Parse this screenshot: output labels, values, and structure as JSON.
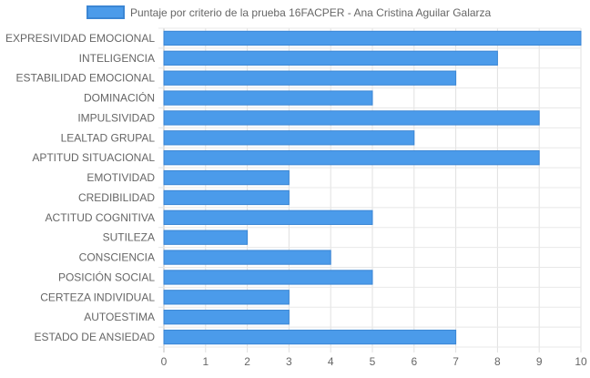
{
  "chart_data": {
    "type": "bar",
    "orientation": "horizontal",
    "categories": [
      "EXPRESIVIDAD EMOCIONAL",
      "INTELIGENCIA",
      "ESTABILIDAD EMOCIONAL",
      "DOMINACIÓN",
      "IMPULSIVIDAD",
      "LEALTAD GRUPAL",
      "APTITUD SITUACIONAL",
      "EMOTIVIDAD",
      "CREDIBILIDAD",
      "ACTITUD COGNITIVA",
      "SUTILEZA",
      "CONSCIENCIA",
      "POSICIÓN SOCIAL",
      "CERTEZA INDIVIDUAL",
      "AUTOESTIMA",
      "ESTADO DE ANSIEDAD"
    ],
    "series": [
      {
        "name": "Puntaje por criterio de la prueba 16FACPER - Ana Cristina Aguilar Galarza",
        "values": [
          10,
          8,
          7,
          5,
          9,
          6,
          9,
          3,
          3,
          5,
          2,
          4,
          5,
          3,
          3,
          7
        ],
        "color": "#4b9bea",
        "border_color": "#3b86d4"
      }
    ],
    "xlim": [
      0,
      10
    ],
    "x_ticks": [
      0,
      1,
      2,
      3,
      4,
      5,
      6,
      7,
      8,
      9,
      10
    ],
    "grid": true,
    "legend_position": "top"
  }
}
